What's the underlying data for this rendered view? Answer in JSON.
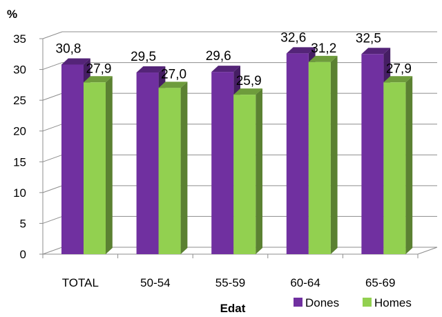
{
  "chart_data": {
    "type": "bar",
    "ylabel": "%",
    "xlabel": "Edat",
    "ylim": [
      0,
      35
    ],
    "yticks": [
      "0",
      "5",
      "10",
      "15",
      "20",
      "25",
      "30",
      "35"
    ],
    "categories": [
      "TOTAL",
      "50-54",
      "55-59",
      "60-64",
      "65-69"
    ],
    "series": [
      {
        "name": "Dones",
        "values": [
          30.8,
          29.5,
          29.6,
          32.6,
          32.5
        ],
        "labels": [
          "30,8",
          "29,5",
          "29,6",
          "32,6",
          "32,5"
        ],
        "color": "#7030A0"
      },
      {
        "name": "Homes",
        "values": [
          27.9,
          27.0,
          25.9,
          31.2,
          27.9
        ],
        "labels": [
          "27,9",
          "27,0",
          "25,9",
          "31,2",
          "27,9"
        ],
        "color": "#92D050"
      }
    ],
    "grid": true,
    "legend_position": "bottom-right",
    "style": "3d-clustered-bar"
  }
}
